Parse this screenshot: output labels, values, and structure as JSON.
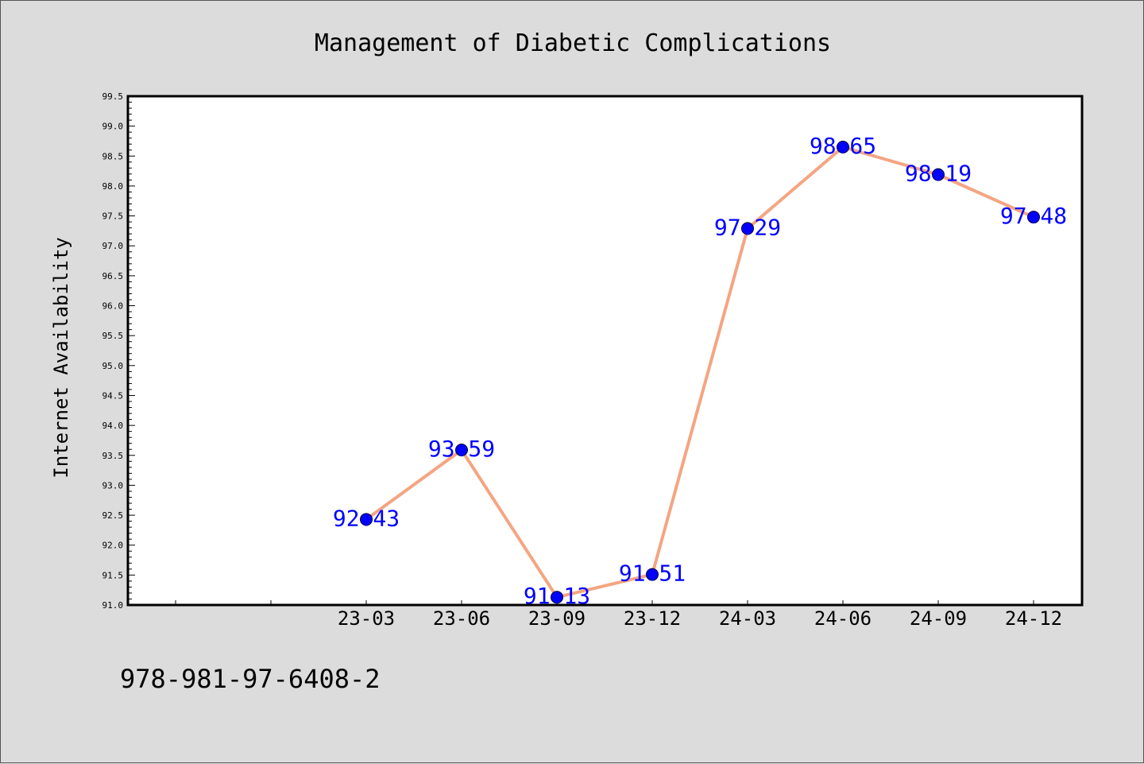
{
  "chart_data": {
    "type": "line",
    "title": "Management of Diabetic Complications",
    "xlabel": "",
    "ylabel": "Internet Availability",
    "categories": [
      "23-03",
      "23-06",
      "23-09",
      "23-12",
      "24-03",
      "24-06",
      "24-09",
      "24-12"
    ],
    "series": [
      {
        "values": [
          92.43,
          93.59,
          91.13,
          91.51,
          97.29,
          98.65,
          98.19,
          97.48
        ],
        "labels": [
          "92.43",
          "93.59",
          "91.13",
          "91.51",
          "97.29",
          "98.65",
          "98.19",
          "97.48"
        ]
      }
    ],
    "ylim": [
      91.0,
      99.5
    ],
    "yticks": [
      "91.0",
      "91.5",
      "92.0",
      "92.5",
      "93.0",
      "93.5",
      "94.0",
      "94.5",
      "95.0",
      "95.5",
      "96.0",
      "96.5",
      "97.0",
      "97.5",
      "98.0",
      "98.5",
      "99.0",
      "99.5"
    ],
    "grid": false,
    "legend": "none",
    "colors": {
      "line": "#f4a582",
      "marker": "#0000ff",
      "label": "#0000ff",
      "background": "#dcdcdc",
      "plot_background": "#ffffff"
    }
  },
  "footer": {
    "isbn": "978-981-97-6408-2"
  }
}
